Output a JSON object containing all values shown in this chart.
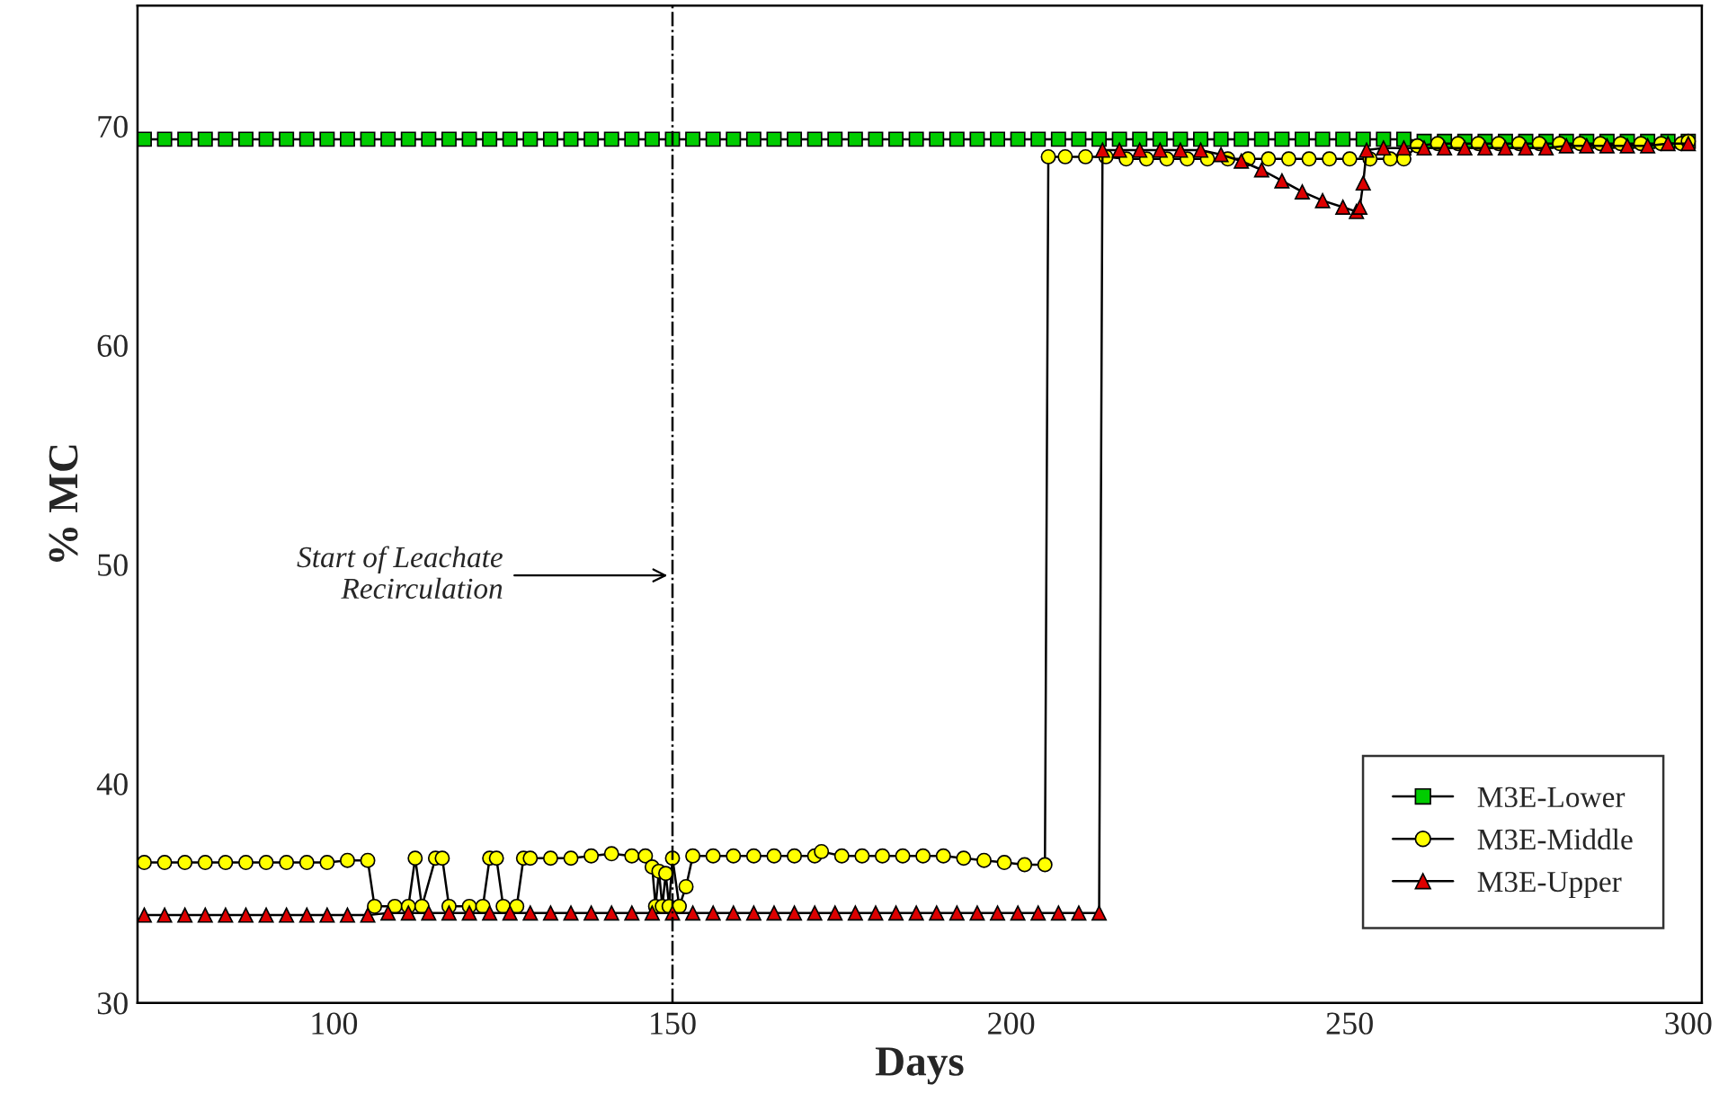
{
  "chart_data": {
    "type": "line",
    "xlabel": "Days",
    "ylabel": "% MC",
    "xlim": [
      71,
      302
    ],
    "xticks": [
      100,
      150,
      200,
      250,
      300
    ],
    "ylim": [
      30,
      75.5
    ],
    "yticks": [
      30,
      40,
      50,
      60,
      70
    ],
    "grid": false,
    "legend": "bottom right",
    "series": [
      {
        "name": "M3E-Lower",
        "color": "#00cc00",
        "marker": "square",
        "x": [
          72,
          75,
          78,
          81,
          84,
          87,
          90,
          93,
          96,
          99,
          102,
          105,
          108,
          111,
          114,
          117,
          120,
          123,
          126,
          129,
          132,
          135,
          138,
          141,
          144,
          147,
          150,
          153,
          156,
          159,
          162,
          165,
          168,
          171,
          174,
          177,
          180,
          183,
          186,
          189,
          192,
          195,
          198,
          201,
          204,
          207,
          210,
          213,
          216,
          219,
          222,
          225,
          228,
          231,
          234,
          237,
          240,
          243,
          246,
          249,
          252,
          255,
          258,
          261,
          264,
          267,
          270,
          273,
          276,
          279,
          282,
          285,
          288,
          291,
          294,
          297,
          300
        ],
        "values": [
          69.4,
          69.4,
          69.4,
          69.4,
          69.4,
          69.4,
          69.4,
          69.4,
          69.4,
          69.4,
          69.4,
          69.4,
          69.4,
          69.4,
          69.4,
          69.4,
          69.4,
          69.4,
          69.4,
          69.4,
          69.4,
          69.4,
          69.4,
          69.4,
          69.4,
          69.4,
          69.4,
          69.4,
          69.4,
          69.4,
          69.4,
          69.4,
          69.4,
          69.4,
          69.4,
          69.4,
          69.4,
          69.4,
          69.4,
          69.4,
          69.4,
          69.4,
          69.4,
          69.4,
          69.4,
          69.4,
          69.4,
          69.4,
          69.4,
          69.4,
          69.4,
          69.4,
          69.4,
          69.4,
          69.4,
          69.4,
          69.4,
          69.4,
          69.4,
          69.4,
          69.4,
          69.4,
          69.4,
          69.3,
          69.3,
          69.3,
          69.3,
          69.3,
          69.3,
          69.3,
          69.3,
          69.3,
          69.3,
          69.3,
          69.3,
          69.3,
          69.3
        ]
      },
      {
        "name": "M3E-Middle",
        "color": "#ffff00",
        "marker": "circle",
        "x": [
          72,
          75,
          78,
          81,
          84,
          87,
          90,
          93,
          96,
          99,
          102,
          105,
          106,
          109,
          111,
          112,
          113,
          115,
          116,
          117,
          120,
          122,
          123,
          124,
          125,
          127,
          128,
          129,
          132,
          135,
          138,
          141,
          144,
          146,
          147,
          147.5,
          148,
          148.5,
          149,
          149.5,
          150,
          151,
          152,
          153,
          156,
          159,
          162,
          165,
          168,
          171,
          172,
          175,
          178,
          181,
          184,
          187,
          190,
          193,
          196,
          199,
          202,
          205,
          205.5,
          208,
          211,
          214,
          217,
          220,
          223,
          226,
          229,
          232,
          235,
          238,
          241,
          244,
          247,
          250,
          253,
          256,
          258,
          260,
          263,
          266,
          269,
          272,
          275,
          278,
          281,
          284,
          287,
          290,
          293,
          296,
          299,
          300
        ],
        "values": [
          36.4,
          36.4,
          36.4,
          36.4,
          36.4,
          36.4,
          36.4,
          36.4,
          36.4,
          36.4,
          36.5,
          36.5,
          34.4,
          34.4,
          34.4,
          36.6,
          34.4,
          36.6,
          36.6,
          34.4,
          34.4,
          34.4,
          36.6,
          36.6,
          34.4,
          34.4,
          36.6,
          36.6,
          36.6,
          36.6,
          36.7,
          36.8,
          36.7,
          36.7,
          36.2,
          34.4,
          36.0,
          34.4,
          35.9,
          34.4,
          36.6,
          34.4,
          35.3,
          36.7,
          36.7,
          36.7,
          36.7,
          36.7,
          36.7,
          36.7,
          36.9,
          36.7,
          36.7,
          36.7,
          36.7,
          36.7,
          36.7,
          36.6,
          36.5,
          36.4,
          36.3,
          36.3,
          68.6,
          68.6,
          68.6,
          68.6,
          68.5,
          68.5,
          68.5,
          68.5,
          68.5,
          68.5,
          68.5,
          68.5,
          68.5,
          68.5,
          68.5,
          68.5,
          68.5,
          68.5,
          68.5,
          69.1,
          69.2,
          69.2,
          69.2,
          69.2,
          69.2,
          69.2,
          69.2,
          69.2,
          69.2,
          69.2,
          69.2,
          69.2,
          69.2,
          69.3
        ]
      },
      {
        "name": "M3E-Upper",
        "color": "#dd0000",
        "marker": "triangle",
        "x": [
          72,
          75,
          78,
          81,
          84,
          87,
          90,
          93,
          96,
          99,
          102,
          105,
          108,
          111,
          114,
          117,
          120,
          123,
          126,
          129,
          132,
          135,
          138,
          141,
          144,
          147,
          150,
          153,
          156,
          159,
          162,
          165,
          168,
          171,
          174,
          177,
          180,
          183,
          186,
          189,
          192,
          195,
          198,
          201,
          204,
          207,
          210,
          213,
          213.5,
          216,
          219,
          222,
          225,
          228,
          231,
          234,
          237,
          240,
          243,
          246,
          249,
          251,
          251.5,
          252,
          252.5,
          255,
          258,
          261,
          264,
          267,
          270,
          273,
          276,
          279,
          282,
          285,
          288,
          291,
          294,
          297,
          300
        ],
        "values": [
          34.0,
          34.0,
          34.0,
          34.0,
          34.0,
          34.0,
          34.0,
          34.0,
          34.0,
          34.0,
          34.0,
          34.0,
          34.1,
          34.1,
          34.1,
          34.1,
          34.1,
          34.1,
          34.1,
          34.1,
          34.1,
          34.1,
          34.1,
          34.1,
          34.1,
          34.1,
          34.1,
          34.1,
          34.1,
          34.1,
          34.1,
          34.1,
          34.1,
          34.1,
          34.1,
          34.1,
          34.1,
          34.1,
          34.1,
          34.1,
          34.1,
          34.1,
          34.1,
          34.1,
          34.1,
          34.1,
          34.1,
          34.1,
          68.9,
          68.9,
          68.9,
          68.9,
          68.9,
          68.9,
          68.7,
          68.4,
          68.0,
          67.5,
          67.0,
          66.6,
          66.3,
          66.1,
          66.3,
          67.4,
          68.9,
          69.0,
          69.0,
          69.0,
          69.0,
          69.0,
          69.0,
          69.0,
          69.0,
          69.0,
          69.1,
          69.1,
          69.1,
          69.1,
          69.1,
          69.2,
          69.2
        ]
      }
    ],
    "ref_lines": [
      {
        "axis": "x",
        "value": 150,
        "line_style": "dashdot",
        "color": "#000000"
      }
    ],
    "annotations": [
      {
        "text": "Start of Leachate\n Recirculation",
        "x": 150,
        "y": 49.5
      }
    ]
  }
}
